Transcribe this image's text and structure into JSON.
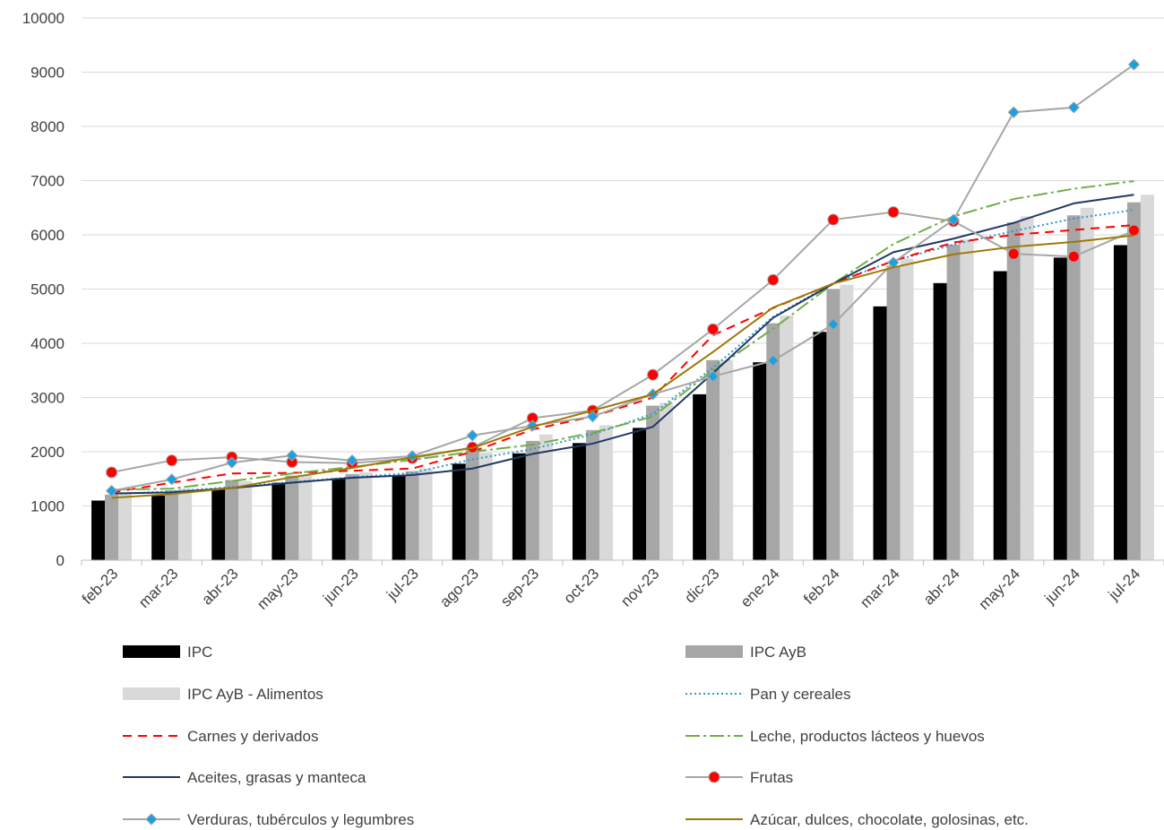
{
  "chart_data": {
    "type": "bar+line",
    "title": "",
    "xlabel": "",
    "ylabel": "",
    "ylim": [
      0,
      10000
    ],
    "yticks": [
      0,
      1000,
      2000,
      3000,
      4000,
      5000,
      6000,
      7000,
      8000,
      9000,
      10000
    ],
    "grid": true,
    "legend_position": "bottom",
    "categories": [
      "feb-23",
      "mar-23",
      "abr-23",
      "may-23",
      "jun-23",
      "jul-23",
      "ago-23",
      "sep-23",
      "oct-23",
      "nov-23",
      "dic-23",
      "ene-24",
      "feb-24",
      "mar-24",
      "abr-24",
      "may-24",
      "jun-24",
      "jul-24"
    ],
    "bar_series": [
      {
        "name": "IPC",
        "color": "#000000",
        "values": [
          1100,
          1190,
          1320,
          1430,
          1510,
          1570,
          1780,
          1970,
          2160,
          2440,
          3060,
          3650,
          4210,
          4680,
          5110,
          5330,
          5580,
          5810
        ]
      },
      {
        "name": "IPC AyB",
        "color": "#a6a6a6",
        "values": [
          1210,
          1290,
          1480,
          1560,
          1590,
          1640,
          2090,
          2200,
          2400,
          2850,
          3690,
          4370,
          5000,
          5430,
          5820,
          6230,
          6360,
          6600
        ]
      },
      {
        "name": "IPC AyB - Alimentos",
        "color": "#d9d9d9",
        "values": [
          1230,
          1320,
          1460,
          1560,
          1620,
          1690,
          1980,
          2320,
          2490,
          2900,
          3690,
          4510,
          5080,
          5560,
          5920,
          6340,
          6500,
          6740
        ]
      }
    ],
    "line_series": [
      {
        "name": "Pan y cereales",
        "color": "#2e9ad0",
        "dash": "2,3",
        "marker": "none",
        "values": [
          1220,
          1270,
          1350,
          1440,
          1530,
          1610,
          1860,
          2050,
          2320,
          2700,
          3550,
          4490,
          5110,
          5520,
          5820,
          6070,
          6300,
          6460
        ]
      },
      {
        "name": "Carnes y derivados",
        "color": "#ff0000",
        "dash": "10,7",
        "marker": "none",
        "values": [
          1250,
          1430,
          1600,
          1610,
          1650,
          1690,
          2000,
          2410,
          2650,
          3000,
          4150,
          4650,
          5100,
          5520,
          5860,
          6000,
          6090,
          6180
        ]
      },
      {
        "name": "Leche, productos lácteos y huevos",
        "color": "#70ad47",
        "dash": "16,4,3,4",
        "marker": "none",
        "values": [
          1300,
          1320,
          1460,
          1600,
          1720,
          1850,
          2000,
          2130,
          2350,
          2650,
          3500,
          4270,
          5100,
          5830,
          6340,
          6660,
          6850,
          6990
        ]
      },
      {
        "name": "Aceites, grasas y manteca",
        "color": "#203864",
        "dash": "",
        "marker": "none",
        "values": [
          1230,
          1250,
          1330,
          1430,
          1520,
          1570,
          1690,
          1960,
          2150,
          2460,
          3450,
          4470,
          5100,
          5680,
          5930,
          6220,
          6580,
          6740
        ]
      },
      {
        "name": "Frutas",
        "color": "#a6a6a6",
        "dash": "",
        "marker": "circle",
        "marker_fill": "#ff0000",
        "values": [
          1620,
          1840,
          1900,
          1810,
          1790,
          1880,
          2080,
          2620,
          2760,
          3420,
          4260,
          5170,
          6280,
          6420,
          6250,
          5650,
          5600,
          6080
        ]
      },
      {
        "name": "Verduras, tubérculos y legumbres",
        "color": "#a6a6a6",
        "dash": "",
        "marker": "diamond",
        "marker_fill": "#1ba1e2",
        "values": [
          1280,
          1490,
          1800,
          1930,
          1840,
          1920,
          2300,
          2480,
          2650,
          3060,
          3390,
          3680,
          4350,
          5490,
          6280,
          8260,
          8350,
          9140
        ]
      },
      {
        "name": "Azúcar, dulces, chocolate, golosinas, etc.",
        "color": "#9c7a06",
        "dash": "",
        "marker": "none",
        "values": [
          1150,
          1220,
          1330,
          1530,
          1700,
          1900,
          2070,
          2460,
          2760,
          3060,
          3840,
          4660,
          5100,
          5400,
          5640,
          5780,
          5870,
          5990
        ]
      }
    ],
    "legend": [
      [
        "IPC",
        "IPC AyB"
      ],
      [
        "IPC AyB - Alimentos",
        "Pan y cereales"
      ],
      [
        "Carnes y derivados",
        "Leche, productos lácteos y huevos"
      ],
      [
        "Aceites, grasas y manteca",
        "Frutas"
      ],
      [
        "Verduras, tubérculos y legumbres",
        "Azúcar, dulces, chocolate, golosinas, etc."
      ]
    ]
  }
}
